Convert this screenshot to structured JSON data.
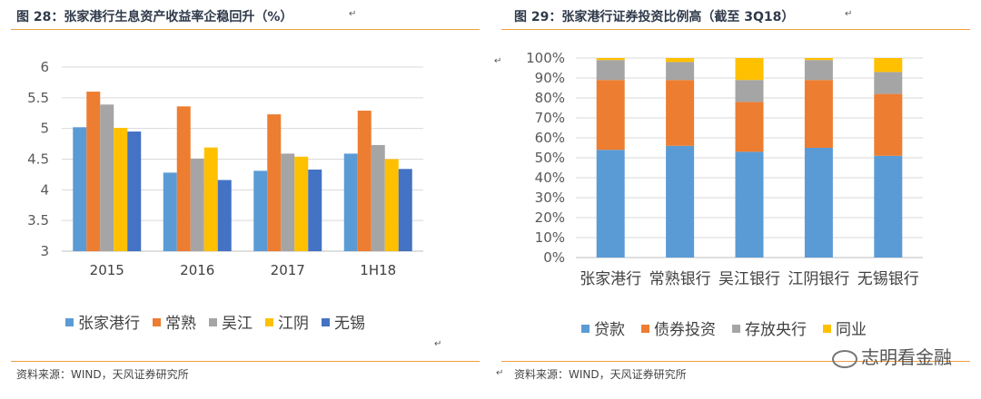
{
  "left": {
    "title": "图 28：张家港行生息资产收益率企稳回升（%）",
    "source": "资料来源：WIND，天风证券研究所",
    "chart_data": {
      "type": "bar",
      "categories": [
        "2015",
        "2016",
        "2017",
        "1H18"
      ],
      "series": [
        {
          "name": "张家港行",
          "color": "#5b9bd5",
          "values": [
            5.02,
            4.28,
            4.31,
            4.59
          ]
        },
        {
          "name": "常熟",
          "color": "#ed7d31",
          "values": [
            5.6,
            5.36,
            5.23,
            5.29
          ]
        },
        {
          "name": "吴江",
          "color": "#a5a5a5",
          "values": [
            5.39,
            4.51,
            4.59,
            4.73
          ]
        },
        {
          "name": "江阴",
          "color": "#ffc000",
          "values": [
            5.01,
            4.69,
            4.54,
            4.5
          ]
        },
        {
          "name": "无锡",
          "color": "#4472c4",
          "values": [
            4.95,
            4.16,
            4.33,
            4.34
          ]
        }
      ],
      "ylim": [
        3,
        6
      ],
      "yticks": [
        "3",
        "3.5",
        "4",
        "4.5",
        "5",
        "5.5",
        "6"
      ],
      "grid": true,
      "legend": "bottom"
    }
  },
  "right": {
    "title": "图 29：张家港行证券投资比例高（截至 3Q18）",
    "source": "资料来源：WIND，天风证券研究所",
    "chart_data": {
      "type": "bar",
      "stacked": true,
      "percent": true,
      "categories": [
        "张家港行",
        "常熟银行",
        "吴江银行",
        "江阴银行",
        "无锡银行"
      ],
      "series": [
        {
          "name": "贷款",
          "color": "#5b9bd5",
          "values": [
            54,
            56,
            53,
            55,
            51
          ]
        },
        {
          "name": "债券投资",
          "color": "#ed7d31",
          "values": [
            35,
            33,
            25,
            34,
            31
          ]
        },
        {
          "name": "存放央行",
          "color": "#a5a5a5",
          "values": [
            10,
            9,
            11,
            10,
            11
          ]
        },
        {
          "name": "同业",
          "color": "#ffc000",
          "values": [
            1,
            2,
            11,
            1,
            7
          ]
        }
      ],
      "ylim": [
        0,
        100
      ],
      "yticks": [
        "0%",
        "10%",
        "20%",
        "30%",
        "40%",
        "50%",
        "60%",
        "70%",
        "80%",
        "90%",
        "100%"
      ],
      "grid": true,
      "legend": "bottom"
    }
  },
  "watermark": "志明看金融"
}
